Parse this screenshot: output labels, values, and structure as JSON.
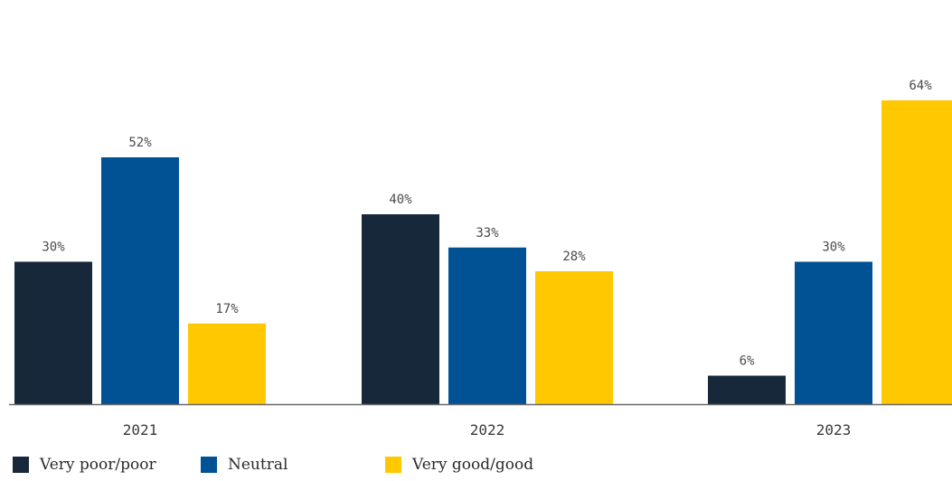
{
  "colors": {
    "very_poor": "#17283b",
    "neutral": "#005295",
    "very_good": "#ffc800",
    "axis": "#6a6a6a"
  },
  "chart_data": {
    "type": "bar",
    "categories": [
      "2021",
      "2022",
      "2023"
    ],
    "series": [
      {
        "name": "Very poor/poor",
        "values": [
          30,
          40,
          6
        ],
        "labels": [
          "30%",
          "40%",
          "6%"
        ]
      },
      {
        "name": "Neutral",
        "values": [
          52,
          33,
          30
        ],
        "labels": [
          "52%",
          "33%",
          "30%"
        ]
      },
      {
        "name": "Very good/good",
        "values": [
          17,
          28,
          64
        ],
        "labels": [
          "17%",
          "28%",
          "64%"
        ]
      }
    ],
    "title": "",
    "xlabel": "",
    "ylabel": "",
    "ylim": [
      0,
      64
    ],
    "grid": false,
    "legend_position": "bottom"
  }
}
